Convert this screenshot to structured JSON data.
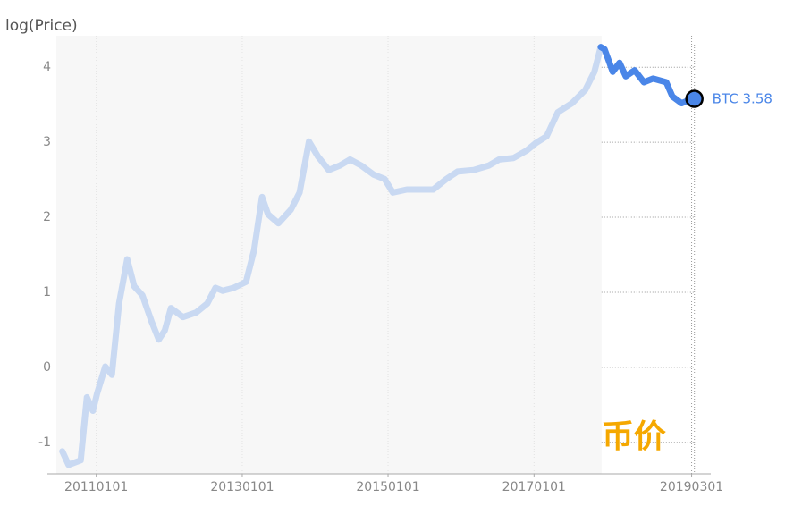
{
  "chart_data": {
    "type": "line",
    "ylabel": "log(Price)",
    "annotation": "币价",
    "highlight_start": "20171205",
    "x": [
      "20100715",
      "20100815",
      "20101015",
      "20101115",
      "20101215",
      "20110105",
      "20110215",
      "20110320",
      "20110425",
      "20110605",
      "20110710",
      "20110820",
      "20111005",
      "20111110",
      "20111210",
      "20120110",
      "20120310",
      "20120515",
      "20120710",
      "20120820",
      "20120925",
      "20121120",
      "20130120",
      "20130301",
      "20130410",
      "20130510",
      "20130701",
      "20130901",
      "20131015",
      "20131201",
      "20140115",
      "20140310",
      "20140505",
      "20140625",
      "20140820",
      "20141020",
      "20141215",
      "20150125",
      "20150405",
      "20150610",
      "20150815",
      "20151020",
      "20151215",
      "20160305",
      "20160520",
      "20160710",
      "20160920",
      "20161125",
      "20170110",
      "20170305",
      "20170430",
      "20170710",
      "20170915",
      "20171030",
      "20171201",
      "20171220",
      "20180130",
      "20180305",
      "20180405",
      "20180520",
      "20180705",
      "20180820",
      "20181025",
      "20181125",
      "20190110",
      "20190215",
      "20190315"
    ],
    "series": [
      {
        "name": "BTC",
        "color": "#4a86e8",
        "faded_color": "#c9d9f2",
        "values": [
          -1.12,
          -1.3,
          -1.24,
          -0.4,
          -0.58,
          -0.35,
          0.01,
          -0.1,
          0.85,
          1.44,
          1.08,
          0.96,
          0.61,
          0.37,
          0.49,
          0.79,
          0.67,
          0.73,
          0.85,
          1.06,
          1.02,
          1.06,
          1.14,
          1.56,
          2.27,
          2.04,
          1.92,
          2.1,
          2.33,
          3.01,
          2.81,
          2.63,
          2.69,
          2.77,
          2.69,
          2.57,
          2.51,
          2.33,
          2.37,
          2.37,
          2.37,
          2.51,
          2.61,
          2.63,
          2.69,
          2.77,
          2.79,
          2.89,
          2.99,
          3.08,
          3.4,
          3.52,
          3.7,
          3.94,
          4.27,
          4.24,
          3.94,
          4.06,
          3.88,
          3.96,
          3.8,
          3.85,
          3.8,
          3.61,
          3.52,
          3.56,
          3.58
        ]
      }
    ],
    "xlim": [
      "20100615",
      "20190605"
    ],
    "xticks": [
      "20110101",
      "20130101",
      "20150101",
      "20170101",
      "20190301"
    ],
    "ylim": [
      -1.42,
      4.42
    ],
    "yticks": [
      -1,
      0,
      1,
      2,
      3,
      4
    ],
    "grid": true
  }
}
